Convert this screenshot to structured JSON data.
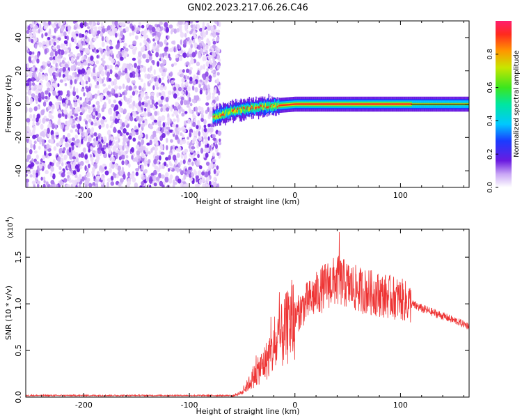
{
  "title": "GN02.2023.217.06.26.C46",
  "colors": {
    "snr_line": "#ee3333",
    "spectrogram_low": "#7a2ee6",
    "axis": "#000000"
  },
  "chart_data": [
    {
      "type": "heatmap",
      "name": "spectrogram",
      "xlabel": "Height of straight line (km)",
      "ylabel": "Frequency (Hz)",
      "xlim": [
        -255,
        165
      ],
      "ylim": [
        -50,
        50
      ],
      "xticks": [
        -200,
        -100,
        0,
        100
      ],
      "xtick_labels": [
        "-200",
        "-100",
        "0",
        "100"
      ],
      "yticks": [
        -40,
        -20,
        0,
        20,
        40
      ],
      "ytick_labels": [
        "-40",
        "-20",
        "0",
        "20",
        "40"
      ],
      "noise_region_x": [
        -255,
        -75
      ],
      "signal_track": [
        {
          "x": -78,
          "y": -8
        },
        {
          "x": -60,
          "y": -4
        },
        {
          "x": -40,
          "y": -2
        },
        {
          "x": -20,
          "y": -1
        },
        {
          "x": 0,
          "y": 0
        },
        {
          "x": 50,
          "y": 0
        },
        {
          "x": 110,
          "y": 0
        },
        {
          "x": 165,
          "y": 0
        }
      ],
      "colorbar": {
        "label": "Normalized spectral amplitude",
        "range": [
          0.0,
          1.0
        ],
        "ticks": [
          0.0,
          0.2,
          0.4,
          0.6,
          0.8
        ],
        "tick_labels": [
          "0.0",
          "0.2",
          "0.4",
          "0.6",
          "0.8"
        ]
      }
    },
    {
      "type": "line",
      "name": "snr",
      "xlabel": "Height of straight line (km)",
      "ylabel": "SNR (10 * v/v)",
      "y_multiplier_label": "(x10",
      "y_multiplier_exp": "4",
      "y_multiplier_close": ")",
      "xlim": [
        -255,
        165
      ],
      "ylim": [
        0.0,
        1.8
      ],
      "xticks": [
        -200,
        -100,
        0,
        100
      ],
      "xtick_labels": [
        "-200",
        "-100",
        "0",
        "100"
      ],
      "yticks": [
        0.0,
        0.5,
        1.0,
        1.5
      ],
      "ytick_labels": [
        "0.0",
        "0.5",
        "1.0",
        "1.5"
      ],
      "envelope": [
        {
          "x": -255,
          "y": 0.01
        },
        {
          "x": -60,
          "y": 0.01
        },
        {
          "x": -50,
          "y": 0.05
        },
        {
          "x": -40,
          "y": 0.2
        },
        {
          "x": -30,
          "y": 0.35
        },
        {
          "x": -20,
          "y": 0.5
        },
        {
          "x": -10,
          "y": 0.7
        },
        {
          "x": 0,
          "y": 0.85
        },
        {
          "x": 10,
          "y": 1.0
        },
        {
          "x": 20,
          "y": 1.1
        },
        {
          "x": 30,
          "y": 1.2
        },
        {
          "x": 40,
          "y": 1.25
        },
        {
          "x": 50,
          "y": 1.2
        },
        {
          "x": 60,
          "y": 1.15
        },
        {
          "x": 80,
          "y": 1.1
        },
        {
          "x": 100,
          "y": 1.05
        },
        {
          "x": 110,
          "y": 1.0
        },
        {
          "x": 120,
          "y": 0.95
        },
        {
          "x": 140,
          "y": 0.87
        },
        {
          "x": 165,
          "y": 0.76
        }
      ],
      "peak": {
        "x": 42,
        "y": 1.77
      }
    }
  ]
}
